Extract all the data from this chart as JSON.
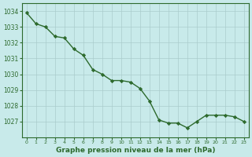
{
  "x": [
    0,
    1,
    2,
    3,
    4,
    5,
    6,
    7,
    8,
    9,
    10,
    11,
    12,
    13,
    14,
    15,
    16,
    17,
    18,
    19,
    20,
    21,
    22,
    23
  ],
  "y": [
    1033.9,
    1033.2,
    1033.0,
    1032.4,
    1032.3,
    1031.6,
    1031.2,
    1030.3,
    1030.0,
    1029.6,
    1029.6,
    1029.5,
    1029.1,
    1028.3,
    1027.1,
    1026.9,
    1026.9,
    1026.6,
    1027.0,
    1027.4,
    1027.4,
    1027.4,
    1027.3,
    1027.0
  ],
  "line_color": "#2d6a2d",
  "marker_color": "#2d6a2d",
  "bg_color": "#c8eaea",
  "grid_color": "#aacccc",
  "axis_color": "#2d6a2d",
  "xlabel": "Graphe pression niveau de la mer (hPa)",
  "ylim_min": 1026.0,
  "ylim_max": 1034.5,
  "ytick_min": 1027,
  "ytick_max": 1034,
  "xtick_labels": [
    "0",
    "1",
    "2",
    "3",
    "4",
    "5",
    "6",
    "7",
    "8",
    "9",
    "10",
    "11",
    "12",
    "13",
    "14",
    "15",
    "16",
    "17",
    "18",
    "19",
    "20",
    "21",
    "22",
    "23"
  ]
}
